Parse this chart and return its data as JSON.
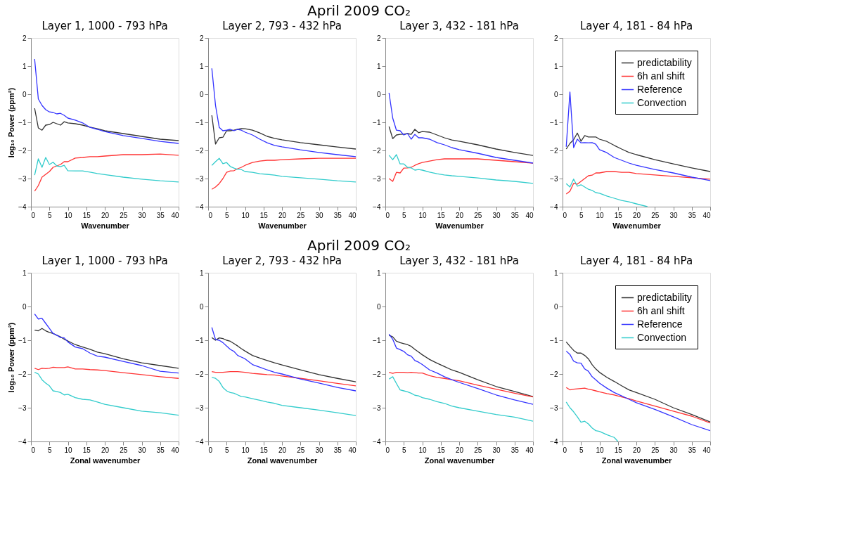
{
  "chart_data": [
    {
      "type": "line",
      "title": "Layer 1, 1000 - 793 hPa",
      "annotations": [
        "April 2009 CO₂"
      ],
      "xlabel": "Wavenumber",
      "ylabel": "log₁₀ Power (ppm²)",
      "xlim": [
        0,
        40
      ],
      "ylim": [
        -4,
        2
      ],
      "xticks": [
        0,
        5,
        10,
        15,
        20,
        25,
        30,
        35,
        40
      ],
      "yticks": [
        -4,
        -3,
        -2,
        -1,
        0,
        1,
        2
      ],
      "x": [
        1,
        2,
        3,
        4,
        5,
        6,
        7,
        8,
        9,
        10,
        12,
        14,
        16,
        18,
        20,
        25,
        30,
        35,
        40
      ],
      "series": [
        {
          "color": "#333333",
          "values": [
            -0.5,
            -1.2,
            -1.28,
            -1.1,
            -1.08,
            -1.0,
            -1.05,
            -1.1,
            -0.98,
            -1.02,
            -1.05,
            -1.1,
            -1.17,
            -1.23,
            -1.3,
            -1.4,
            -1.5,
            -1.6,
            -1.65
          ]
        },
        {
          "color": "#ff3333",
          "values": [
            -3.45,
            -3.25,
            -2.95,
            -2.85,
            -2.75,
            -2.6,
            -2.55,
            -2.5,
            -2.4,
            -2.4,
            -2.27,
            -2.25,
            -2.22,
            -2.22,
            -2.2,
            -2.15,
            -2.15,
            -2.13,
            -2.17
          ]
        },
        {
          "color": "#3333ff",
          "values": [
            1.25,
            -0.17,
            -0.4,
            -0.55,
            -0.63,
            -0.65,
            -0.7,
            -0.68,
            -0.75,
            -0.85,
            -0.92,
            -1.02,
            -1.18,
            -1.25,
            -1.33,
            -1.47,
            -1.57,
            -1.68,
            -1.75
          ]
        },
        {
          "color": "#33cccc",
          "values": [
            -2.88,
            -2.3,
            -2.6,
            -2.25,
            -2.5,
            -2.42,
            -2.55,
            -2.58,
            -2.53,
            -2.72,
            -2.73,
            -2.73,
            -2.77,
            -2.82,
            -2.86,
            -2.95,
            -3.02,
            -3.08,
            -3.12
          ]
        }
      ]
    },
    {
      "type": "line",
      "title": "Layer 2, 793 - 432 hPa",
      "xlabel": "Wavenumber",
      "xlim": [
        0,
        40
      ],
      "ylim": [
        -4,
        2
      ],
      "xticks": [
        0,
        5,
        10,
        15,
        20,
        25,
        30,
        35,
        40
      ],
      "yticks": [
        -4,
        -3,
        -2,
        -1,
        0,
        1,
        2
      ],
      "x": [
        1,
        2,
        3,
        4,
        5,
        6,
        7,
        8,
        9,
        10,
        12,
        14,
        16,
        18,
        20,
        25,
        30,
        35,
        40
      ],
      "series": [
        {
          "color": "#333333",
          "values": [
            -0.75,
            -1.77,
            -1.55,
            -1.53,
            -1.3,
            -1.3,
            -1.28,
            -1.25,
            -1.22,
            -1.23,
            -1.28,
            -1.38,
            -1.5,
            -1.57,
            -1.62,
            -1.72,
            -1.8,
            -1.88,
            -1.95
          ]
        },
        {
          "color": "#ff3333",
          "values": [
            -3.38,
            -3.3,
            -3.18,
            -3.0,
            -2.78,
            -2.73,
            -2.72,
            -2.65,
            -2.6,
            -2.53,
            -2.43,
            -2.38,
            -2.35,
            -2.35,
            -2.33,
            -2.3,
            -2.28,
            -2.28,
            -2.28
          ]
        },
        {
          "color": "#3333ff",
          "values": [
            0.92,
            -0.4,
            -1.18,
            -1.3,
            -1.28,
            -1.25,
            -1.3,
            -1.25,
            -1.28,
            -1.35,
            -1.45,
            -1.6,
            -1.73,
            -1.82,
            -1.87,
            -1.98,
            -2.07,
            -2.15,
            -2.22
          ]
        },
        {
          "color": "#33cccc",
          "values": [
            -2.53,
            -2.4,
            -2.28,
            -2.47,
            -2.43,
            -2.57,
            -2.63,
            -2.67,
            -2.68,
            -2.75,
            -2.78,
            -2.83,
            -2.85,
            -2.88,
            -2.92,
            -2.97,
            -3.02,
            -3.08,
            -3.12
          ]
        }
      ]
    },
    {
      "type": "line",
      "title": "Layer 3, 432 - 181 hPa",
      "xlabel": "Wavenumber",
      "xlim": [
        0,
        40
      ],
      "ylim": [
        -4,
        2
      ],
      "xticks": [
        0,
        5,
        10,
        15,
        20,
        25,
        30,
        35,
        40
      ],
      "yticks": [
        -4,
        -3,
        -2,
        -1,
        0,
        1,
        2
      ],
      "x": [
        1,
        2,
        3,
        4,
        5,
        6,
        7,
        8,
        9,
        10,
        12,
        14,
        16,
        18,
        20,
        25,
        30,
        35,
        40
      ],
      "series": [
        {
          "color": "#333333",
          "values": [
            -1.15,
            -1.58,
            -1.45,
            -1.43,
            -1.42,
            -1.4,
            -1.43,
            -1.25,
            -1.37,
            -1.33,
            -1.35,
            -1.45,
            -1.55,
            -1.63,
            -1.67,
            -1.8,
            -1.95,
            -2.07,
            -2.18
          ]
        },
        {
          "color": "#ff3333",
          "values": [
            -3.0,
            -3.1,
            -2.78,
            -2.8,
            -2.63,
            -2.62,
            -2.6,
            -2.53,
            -2.47,
            -2.43,
            -2.38,
            -2.33,
            -2.3,
            -2.3,
            -2.3,
            -2.3,
            -2.35,
            -2.4,
            -2.45
          ]
        },
        {
          "color": "#3333ff",
          "values": [
            0.05,
            -0.85,
            -1.28,
            -1.3,
            -1.45,
            -1.4,
            -1.6,
            -1.43,
            -1.55,
            -1.55,
            -1.6,
            -1.72,
            -1.8,
            -1.9,
            -1.97,
            -2.1,
            -2.25,
            -2.35,
            -2.45
          ]
        },
        {
          "color": "#33cccc",
          "values": [
            -2.17,
            -2.33,
            -2.15,
            -2.48,
            -2.48,
            -2.6,
            -2.62,
            -2.7,
            -2.68,
            -2.7,
            -2.77,
            -2.83,
            -2.87,
            -2.9,
            -2.92,
            -2.98,
            -3.05,
            -3.1,
            -3.17
          ]
        }
      ]
    },
    {
      "type": "line",
      "title": "Layer 4, 181 - 84 hPa",
      "xlabel": "Wavenumber",
      "xlim": [
        0,
        40
      ],
      "ylim": [
        -4,
        2
      ],
      "xticks": [
        0,
        5,
        10,
        15,
        20,
        25,
        30,
        35,
        40
      ],
      "yticks": [
        -4,
        -3,
        -2,
        -1,
        0,
        1,
        2
      ],
      "legend": "top right",
      "x": [
        1,
        2,
        3,
        4,
        5,
        6,
        7,
        8,
        9,
        10,
        12,
        14,
        16,
        18,
        20,
        25,
        30,
        35,
        40
      ],
      "series": [
        {
          "name": "predictability",
          "color": "#333333",
          "values": [
            -1.95,
            -1.75,
            -1.62,
            -1.38,
            -1.67,
            -1.47,
            -1.52,
            -1.52,
            -1.52,
            -1.6,
            -1.68,
            -1.82,
            -1.95,
            -2.07,
            -2.15,
            -2.33,
            -2.48,
            -2.62,
            -2.75
          ]
        },
        {
          "name": "6h anl shift",
          "color": "#ff3333",
          "values": [
            -3.55,
            -3.45,
            -3.17,
            -3.2,
            -3.1,
            -3.0,
            -2.9,
            -2.88,
            -2.8,
            -2.8,
            -2.75,
            -2.75,
            -2.78,
            -2.78,
            -2.82,
            -2.87,
            -2.92,
            -2.97,
            -3.02
          ]
        },
        {
          "name": "Reference",
          "color": "#3333ff",
          "values": [
            -1.87,
            0.08,
            -1.9,
            -1.6,
            -1.73,
            -1.72,
            -1.73,
            -1.72,
            -1.78,
            -1.97,
            -2.08,
            -2.25,
            -2.35,
            -2.45,
            -2.53,
            -2.68,
            -2.8,
            -2.95,
            -3.07
          ]
        },
        {
          "name": "Convection",
          "color": "#33cccc",
          "x": [
            1,
            2,
            3,
            4,
            5,
            6,
            7,
            8,
            9,
            10,
            12,
            14,
            16,
            18,
            20,
            23
          ],
          "values": [
            -3.18,
            -3.3,
            -3.02,
            -3.27,
            -3.22,
            -3.3,
            -3.38,
            -3.42,
            -3.5,
            -3.52,
            -3.62,
            -3.7,
            -3.78,
            -3.83,
            -3.9,
            -4.0
          ]
        }
      ]
    },
    {
      "type": "line",
      "title": "Layer 1, 1000 - 793 hPa",
      "annotations": [
        "April 2009 CO₂"
      ],
      "xlabel": "Zonal wavenumber",
      "ylabel": "log₁₀ Power (ppm²)",
      "xlim": [
        0,
        40
      ],
      "ylim": [
        -4,
        1
      ],
      "xticks": [
        0,
        5,
        10,
        15,
        20,
        25,
        30,
        35,
        40
      ],
      "yticks": [
        -4,
        -3,
        -2,
        -1,
        0,
        1
      ],
      "x": [
        1,
        2,
        3,
        4,
        5,
        6,
        7,
        8,
        9,
        10,
        12,
        14,
        16,
        18,
        20,
        25,
        30,
        35,
        40
      ],
      "series": [
        {
          "color": "#333333",
          "values": [
            -0.7,
            -0.72,
            -0.65,
            -0.72,
            -0.77,
            -0.8,
            -0.85,
            -0.9,
            -0.97,
            -1.02,
            -1.13,
            -1.2,
            -1.27,
            -1.35,
            -1.4,
            -1.55,
            -1.67,
            -1.75,
            -1.83
          ]
        },
        {
          "color": "#ff3333",
          "values": [
            -1.83,
            -1.87,
            -1.83,
            -1.84,
            -1.83,
            -1.8,
            -1.81,
            -1.81,
            -1.81,
            -1.79,
            -1.85,
            -1.85,
            -1.87,
            -1.88,
            -1.9,
            -1.96,
            -2.02,
            -2.08,
            -2.13
          ]
        },
        {
          "color": "#3333ff",
          "values": [
            -0.22,
            -0.37,
            -0.35,
            -0.5,
            -0.65,
            -0.8,
            -0.85,
            -0.92,
            -0.93,
            -1.05,
            -1.2,
            -1.25,
            -1.38,
            -1.47,
            -1.5,
            -1.63,
            -1.75,
            -1.92,
            -1.97
          ]
        },
        {
          "color": "#33cccc",
          "values": [
            -1.95,
            -2.0,
            -2.17,
            -2.27,
            -2.35,
            -2.5,
            -2.52,
            -2.55,
            -2.62,
            -2.6,
            -2.7,
            -2.75,
            -2.77,
            -2.83,
            -2.9,
            -3.0,
            -3.1,
            -3.15,
            -3.22
          ]
        }
      ]
    },
    {
      "type": "line",
      "title": "Layer 2, 793 - 432 hPa",
      "xlabel": "Zonal wavenumber",
      "xlim": [
        0,
        40
      ],
      "ylim": [
        -4,
        1
      ],
      "xticks": [
        0,
        5,
        10,
        15,
        20,
        25,
        30,
        35,
        40
      ],
      "yticks": [
        -4,
        -3,
        -2,
        -1,
        0,
        1
      ],
      "x": [
        1,
        2,
        3,
        4,
        5,
        6,
        7,
        8,
        9,
        10,
        12,
        14,
        16,
        18,
        20,
        25,
        30,
        35,
        40
      ],
      "series": [
        {
          "color": "#333333",
          "values": [
            -0.92,
            -1.0,
            -0.93,
            -0.95,
            -1.0,
            -1.03,
            -1.1,
            -1.17,
            -1.25,
            -1.32,
            -1.45,
            -1.53,
            -1.6,
            -1.67,
            -1.73,
            -1.88,
            -2.02,
            -2.13,
            -2.23
          ]
        },
        {
          "color": "#ff3333",
          "values": [
            -1.93,
            -1.95,
            -1.95,
            -1.95,
            -1.94,
            -1.93,
            -1.93,
            -1.93,
            -1.94,
            -1.95,
            -1.98,
            -2.0,
            -2.02,
            -2.03,
            -2.06,
            -2.13,
            -2.2,
            -2.28,
            -2.35
          ]
        },
        {
          "color": "#3333ff",
          "values": [
            -0.62,
            -0.98,
            -1.0,
            -1.07,
            -1.17,
            -1.27,
            -1.33,
            -1.45,
            -1.5,
            -1.55,
            -1.72,
            -1.8,
            -1.88,
            -1.95,
            -2.0,
            -2.15,
            -2.27,
            -2.4,
            -2.5
          ]
        },
        {
          "color": "#33cccc",
          "values": [
            -2.1,
            -2.13,
            -2.22,
            -2.4,
            -2.5,
            -2.55,
            -2.57,
            -2.62,
            -2.67,
            -2.68,
            -2.73,
            -2.78,
            -2.83,
            -2.87,
            -2.93,
            -3.0,
            -3.07,
            -3.15,
            -3.23
          ]
        }
      ]
    },
    {
      "type": "line",
      "title": "Layer 3, 432 - 181 hPa",
      "xlabel": "Zonal wavenumber",
      "xlim": [
        0,
        40
      ],
      "ylim": [
        -4,
        1
      ],
      "xticks": [
        0,
        5,
        10,
        15,
        20,
        25,
        30,
        35,
        40
      ],
      "yticks": [
        -4,
        -3,
        -2,
        -1,
        0,
        1
      ],
      "x": [
        1,
        2,
        3,
        4,
        5,
        6,
        7,
        8,
        9,
        10,
        12,
        14,
        16,
        18,
        20,
        25,
        30,
        35,
        40
      ],
      "series": [
        {
          "color": "#333333",
          "values": [
            -0.85,
            -0.9,
            -1.03,
            -1.07,
            -1.1,
            -1.13,
            -1.18,
            -1.27,
            -1.35,
            -1.43,
            -1.57,
            -1.68,
            -1.78,
            -1.88,
            -1.95,
            -2.17,
            -2.37,
            -2.52,
            -2.67
          ]
        },
        {
          "color": "#ff3333",
          "values": [
            -1.95,
            -1.98,
            -1.95,
            -1.95,
            -1.95,
            -1.96,
            -1.95,
            -1.96,
            -1.97,
            -1.97,
            -2.05,
            -2.1,
            -2.13,
            -2.17,
            -2.2,
            -2.33,
            -2.45,
            -2.57,
            -2.68
          ]
        },
        {
          "color": "#3333ff",
          "values": [
            -0.82,
            -0.97,
            -1.23,
            -1.28,
            -1.33,
            -1.43,
            -1.47,
            -1.6,
            -1.65,
            -1.72,
            -1.88,
            -1.97,
            -2.08,
            -2.17,
            -2.25,
            -2.43,
            -2.62,
            -2.77,
            -2.9
          ]
        },
        {
          "color": "#33cccc",
          "values": [
            -2.15,
            -2.08,
            -2.28,
            -2.47,
            -2.5,
            -2.53,
            -2.57,
            -2.63,
            -2.65,
            -2.7,
            -2.75,
            -2.82,
            -2.87,
            -2.95,
            -3.0,
            -3.1,
            -3.2,
            -3.28,
            -3.4
          ]
        }
      ]
    },
    {
      "type": "line",
      "title": "Layer 4, 181 - 84 hPa",
      "xlabel": "Zonal wavenumber",
      "xlim": [
        0,
        40
      ],
      "ylim": [
        -4,
        1
      ],
      "xticks": [
        0,
        5,
        10,
        15,
        20,
        25,
        30,
        35,
        40
      ],
      "yticks": [
        -4,
        -3,
        -2,
        -1,
        0,
        1
      ],
      "legend": "top right",
      "x": [
        1,
        2,
        3,
        4,
        5,
        6,
        7,
        8,
        9,
        10,
        12,
        14,
        16,
        18,
        20,
        25,
        30,
        35,
        40
      ],
      "series": [
        {
          "name": "predictability",
          "color": "#333333",
          "values": [
            -1.05,
            -1.18,
            -1.3,
            -1.38,
            -1.38,
            -1.45,
            -1.55,
            -1.72,
            -1.85,
            -1.95,
            -2.1,
            -2.22,
            -2.35,
            -2.47,
            -2.55,
            -2.75,
            -3.0,
            -3.2,
            -3.42
          ]
        },
        {
          "name": "6h anl shift",
          "color": "#ff3333",
          "values": [
            -2.4,
            -2.47,
            -2.45,
            -2.44,
            -2.43,
            -2.42,
            -2.45,
            -2.47,
            -2.5,
            -2.53,
            -2.58,
            -2.62,
            -2.68,
            -2.73,
            -2.8,
            -2.95,
            -3.1,
            -3.25,
            -3.45
          ]
        },
        {
          "name": "Reference",
          "color": "#3333ff",
          "values": [
            -1.32,
            -1.42,
            -1.62,
            -1.67,
            -1.68,
            -1.85,
            -1.92,
            -2.08,
            -2.17,
            -2.27,
            -2.42,
            -2.55,
            -2.65,
            -2.75,
            -2.85,
            -3.05,
            -3.27,
            -3.5,
            -3.68
          ]
        },
        {
          "name": "Convection",
          "color": "#33cccc",
          "x": [
            1,
            2,
            3,
            4,
            5,
            6,
            7,
            8,
            9,
            10,
            12,
            14,
            15
          ],
          "values": [
            -2.83,
            -3.0,
            -3.12,
            -3.27,
            -3.43,
            -3.4,
            -3.48,
            -3.6,
            -3.68,
            -3.7,
            -3.8,
            -3.88,
            -4.0
          ]
        }
      ]
    }
  ]
}
